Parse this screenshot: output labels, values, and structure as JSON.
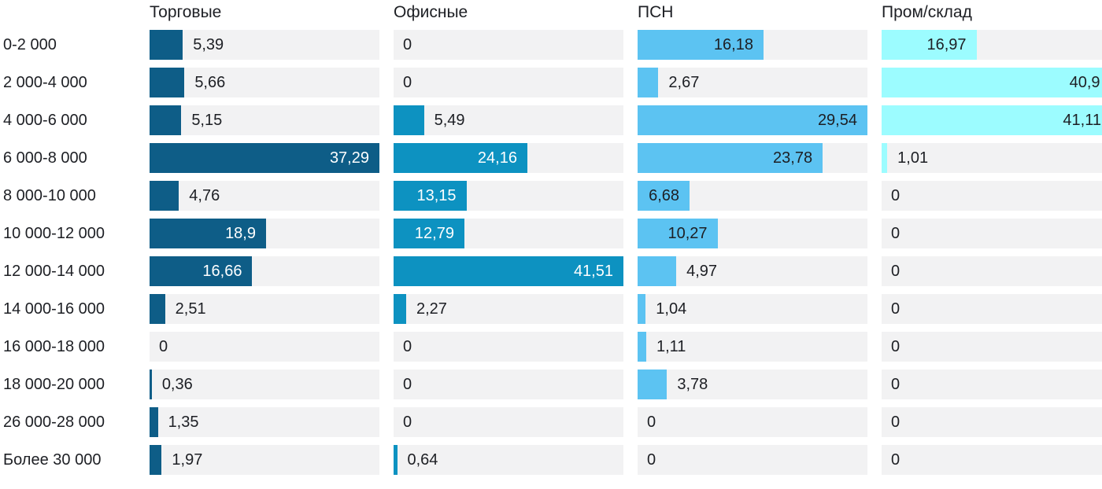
{
  "chart_data": {
    "type": "bar",
    "orientation": "horizontal",
    "title": "",
    "xlabel": "",
    "ylabel": "",
    "grid": false,
    "legend_position": "column-headers",
    "scaling": "each column scaled to its own max value",
    "track_color": "#f2f2f3",
    "text_color": "#1d1f24",
    "categories": [
      "0-2 000",
      "2 000-4 000",
      "4 000-6 000",
      "6 000-8 000",
      "8 000-10 000",
      "10 000-12 000",
      "12 000-14 000",
      "14 000-16 000",
      "16 000-18 000",
      "18 000-20 000",
      "26 000-28 000",
      "Более 30 000"
    ],
    "series": [
      {
        "name": "Торговые",
        "color": "#0e5d87",
        "inside_label_color": "#ffffff",
        "values": [
          5.39,
          5.66,
          5.15,
          37.29,
          4.76,
          18.9,
          16.66,
          2.51,
          0,
          0.36,
          1.35,
          1.97
        ],
        "labels": [
          "5,39",
          "5,66",
          "5,15",
          "37,29",
          "4,76",
          "18,9",
          "16,66",
          "2,51",
          "0",
          "0,36",
          "1,35",
          "1,97"
        ]
      },
      {
        "name": "Офисные",
        "color": "#0d92c1",
        "inside_label_color": "#ffffff",
        "values": [
          0,
          0,
          5.49,
          24.16,
          13.15,
          12.79,
          41.51,
          2.27,
          0,
          0,
          0,
          0.64
        ],
        "labels": [
          "0",
          "0",
          "5,49",
          "24,16",
          "13,15",
          "12,79",
          "41,51",
          "2,27",
          "0",
          "0",
          "0",
          "0,64"
        ]
      },
      {
        "name": "ПСН",
        "color": "#5cc3f2",
        "inside_label_color": "#1d1f24",
        "values": [
          16.18,
          2.67,
          29.54,
          23.78,
          6.68,
          10.27,
          4.97,
          1.04,
          1.11,
          3.78,
          0,
          0
        ],
        "labels": [
          "16,18",
          "2,67",
          "29,54",
          "23,78",
          "6,68",
          "10,27",
          "4,97",
          "1,04",
          "1,11",
          "3,78",
          "0",
          "0"
        ]
      },
      {
        "name": "Пром/склад",
        "color": "#9cfcff",
        "inside_label_color": "#1d1f24",
        "values": [
          16.97,
          40.9,
          41.11,
          1.01,
          0,
          0,
          0,
          0,
          0,
          0,
          0,
          0
        ],
        "labels": [
          "16,97",
          "40,9",
          "41,11",
          "1,01",
          "0",
          "0",
          "0",
          "0",
          "0",
          "0",
          "0",
          "0"
        ]
      }
    ]
  }
}
